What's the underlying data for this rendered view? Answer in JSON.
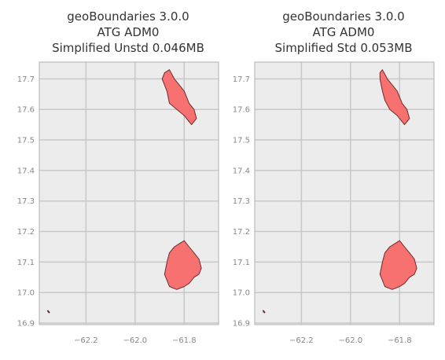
{
  "panels": [
    {
      "title_lines": [
        "geoBoundaries 3.0.0",
        "ATG ADM0",
        "Simplified Unstd 0.046MB"
      ],
      "barbuda": [
        [
          -61.88,
          17.72
        ],
        [
          -61.86,
          17.73
        ],
        [
          -61.84,
          17.7
        ],
        [
          -61.82,
          17.68
        ],
        [
          -61.8,
          17.66
        ],
        [
          -61.78,
          17.62
        ],
        [
          -61.76,
          17.6
        ],
        [
          -61.75,
          17.57
        ],
        [
          -61.77,
          17.55
        ],
        [
          -61.8,
          17.58
        ],
        [
          -61.83,
          17.6
        ],
        [
          -61.86,
          17.62
        ],
        [
          -61.87,
          17.66
        ],
        [
          -61.89,
          17.7
        ]
      ],
      "antigua": [
        [
          -61.88,
          17.06
        ],
        [
          -61.87,
          17.1
        ],
        [
          -61.86,
          17.13
        ],
        [
          -61.84,
          17.15
        ],
        [
          -61.82,
          17.16
        ],
        [
          -61.8,
          17.17
        ],
        [
          -61.78,
          17.15
        ],
        [
          -61.76,
          17.13
        ],
        [
          -61.74,
          17.11
        ],
        [
          -61.73,
          17.08
        ],
        [
          -61.74,
          17.06
        ],
        [
          -61.76,
          17.05
        ],
        [
          -61.78,
          17.03
        ],
        [
          -61.8,
          17.02
        ],
        [
          -61.83,
          17.01
        ],
        [
          -61.86,
          17.02
        ]
      ],
      "redonda": [
        [
          -62.355,
          16.94
        ],
        [
          -62.35,
          16.935
        ]
      ]
    },
    {
      "title_lines": [
        "geoBoundaries 3.0.0",
        "ATG ADM0",
        "Simplified Std 0.053MB"
      ],
      "barbuda": [
        [
          -61.88,
          17.72
        ],
        [
          -61.87,
          17.73
        ],
        [
          -61.85,
          17.7
        ],
        [
          -61.83,
          17.68
        ],
        [
          -61.81,
          17.66
        ],
        [
          -61.79,
          17.62
        ],
        [
          -61.77,
          17.6
        ],
        [
          -61.76,
          17.57
        ],
        [
          -61.78,
          17.55
        ],
        [
          -61.81,
          17.58
        ],
        [
          -61.84,
          17.6
        ],
        [
          -61.86,
          17.63
        ],
        [
          -61.87,
          17.66
        ],
        [
          -61.88,
          17.7
        ]
      ],
      "antigua": [
        [
          -61.88,
          17.06
        ],
        [
          -61.87,
          17.1
        ],
        [
          -61.86,
          17.13
        ],
        [
          -61.84,
          17.15
        ],
        [
          -61.82,
          17.16
        ],
        [
          -61.8,
          17.17
        ],
        [
          -61.78,
          17.15
        ],
        [
          -61.76,
          17.13
        ],
        [
          -61.74,
          17.11
        ],
        [
          -61.73,
          17.08
        ],
        [
          -61.74,
          17.06
        ],
        [
          -61.76,
          17.05
        ],
        [
          -61.78,
          17.03
        ],
        [
          -61.8,
          17.02
        ],
        [
          -61.83,
          17.01
        ],
        [
          -61.86,
          17.02
        ]
      ],
      "redonda": [
        [
          -62.355,
          16.94
        ],
        [
          -62.35,
          16.935
        ]
      ]
    }
  ],
  "axes": {
    "x_ticks": [
      "−62.2",
      "−62.0",
      "−61.8"
    ],
    "x_tick_values": [
      -62.2,
      -62.0,
      -61.8
    ],
    "y_ticks": [
      "16.9",
      "17.0",
      "17.1",
      "17.2",
      "17.3",
      "17.4",
      "17.5",
      "17.6",
      "17.7"
    ],
    "y_tick_values": [
      16.9,
      17.0,
      17.1,
      17.2,
      17.3,
      17.4,
      17.5,
      17.6,
      17.7
    ],
    "xlim": [
      -62.39,
      -61.66
    ],
    "ylim": [
      16.895,
      17.755
    ]
  },
  "colors": {
    "fill": "#f87171",
    "stroke": "#6b2d2d",
    "plot_bg": "#ececec",
    "grid": "#c8c8c8",
    "frame": "#b0b0b0"
  }
}
